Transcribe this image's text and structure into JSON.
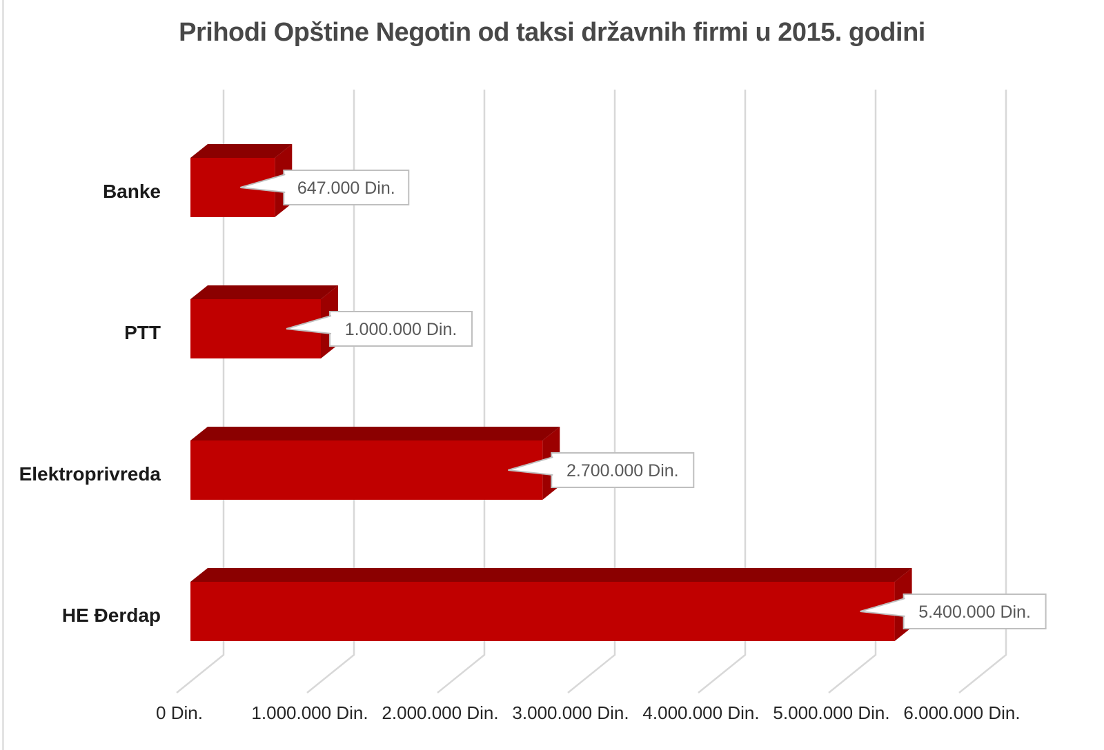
{
  "chart_data": {
    "type": "bar",
    "orientation": "horizontal",
    "style": "3d-clustered",
    "title": "Prihodi Opštine Negotin od taksi državnih firmi u 2015. godini",
    "unit": "Din.",
    "categories": [
      "Banke",
      "PTT",
      "Elektroprivreda",
      "HE Đerdap"
    ],
    "values": [
      647000,
      1000000,
      2700000,
      5400000
    ],
    "data_labels": [
      "647.000 Din.",
      "1.000.000 Din.",
      "2.700.000 Din.",
      "5.400.000 Din."
    ],
    "x_ticks": [
      {
        "value": 0,
        "label": "0 Din."
      },
      {
        "value": 1000000,
        "label": "1.000.000 Din."
      },
      {
        "value": 2000000,
        "label": "2.000.000 Din."
      },
      {
        "value": 3000000,
        "label": "3.000.000 Din."
      },
      {
        "value": 4000000,
        "label": "4.000.000 Din."
      },
      {
        "value": 5000000,
        "label": "5.000.000 Din."
      },
      {
        "value": 6000000,
        "label": "6.000.000 Din."
      }
    ],
    "xlim": [
      0,
      6000000
    ],
    "xlabel": "",
    "ylabel": "",
    "grid": true,
    "legend": false,
    "bar_color": "#C00000",
    "bar_top_color": "#8B0000",
    "bar_side_color": "#9C0000",
    "gridline_color": "#D8D8D8",
    "title_color": "#484848",
    "category_label_color": "#1A1A1A",
    "tick_label_color": "#262626",
    "callout": {
      "bg": "#FFFFFF",
      "border": "#BFBFBF",
      "text_color": "#595959"
    }
  }
}
